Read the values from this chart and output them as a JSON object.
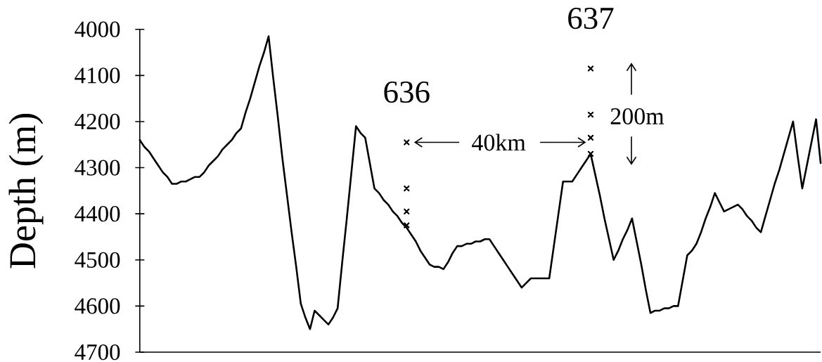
{
  "chart_data": {
    "type": "line",
    "ylabel": "Depth (m)",
    "ylim": [
      4700,
      4000
    ],
    "yticks": [
      4000,
      4100,
      4200,
      4300,
      4400,
      4500,
      4600,
      4700
    ],
    "categories": [
      null,
      null,
      null,
      null,
      null,
      null,
      null,
      null,
      null,
      null,
      null,
      null,
      null,
      null,
      null,
      null,
      null,
      null,
      null,
      null,
      null,
      null,
      null,
      null,
      null,
      null,
      null,
      null,
      null,
      null,
      null,
      null,
      null,
      null,
      null,
      null,
      null,
      null,
      null,
      null,
      null,
      null,
      null,
      null,
      null,
      null,
      null,
      null,
      null,
      null,
      null,
      null,
      null,
      null,
      null,
      null,
      null,
      null,
      "636",
      null,
      null,
      null,
      null,
      null,
      null,
      null,
      null,
      null,
      null,
      null,
      null,
      null,
      null,
      null,
      null,
      null,
      null,
      null,
      null,
      null,
      null,
      null,
      null,
      null,
      null,
      null,
      null,
      null,
      null,
      null,
      null,
      null,
      null,
      null,
      null,
      null,
      null,
      null,
      "637",
      null,
      null,
      null,
      null,
      null,
      null,
      null,
      null,
      null,
      null,
      null,
      null,
      null,
      null,
      null,
      null,
      null,
      null,
      null,
      null,
      null,
      null,
      null,
      null,
      null,
      null,
      null,
      null,
      null,
      null,
      null,
      null,
      null,
      null,
      null,
      null,
      null,
      null,
      null,
      null,
      null,
      null,
      null,
      null,
      null,
      null,
      null,
      null,
      null,
      null
    ],
    "series": [
      {
        "color": "#000000",
        "values": [
          4240,
          4255,
          4265,
          4280,
          4295,
          4310,
          4320,
          4335,
          4335,
          4330,
          4330,
          4325,
          4320,
          4320,
          4310,
          4295,
          4285,
          4275,
          4260,
          4250,
          4240,
          4225,
          4215,
          4180,
          4150,
          4115,
          4080,
          4050,
          4015,
          4105,
          4190,
          4280,
          4360,
          4440,
          4515,
          4595,
          4625,
          4650,
          4610,
          4620,
          4630,
          4640,
          4625,
          4605,
          4505,
          4410,
          4310,
          4210,
          4225,
          4235,
          4290,
          4345,
          4355,
          4370,
          4380,
          4395,
          4405,
          4420,
          4430,
          4445,
          4460,
          4480,
          4495,
          4510,
          4515,
          4515,
          4520,
          4505,
          4485,
          4470,
          4470,
          4465,
          4465,
          4460,
          4460,
          4455,
          4455,
          4470,
          4485,
          4500,
          4515,
          4530,
          4545,
          4560,
          4550,
          4540,
          4540,
          4540,
          4540,
          4540,
          4470,
          4400,
          4330,
          4330,
          4330,
          4315,
          4300,
          4285,
          4270,
          4315,
          4360,
          4410,
          4455,
          4500,
          4480,
          4455,
          4435,
          4410,
          4460,
          4510,
          4565,
          4615,
          4610,
          4610,
          4605,
          4605,
          4600,
          4600,
          4545,
          4490,
          4480,
          4465,
          4440,
          4410,
          4385,
          4355,
          4375,
          4395,
          4390,
          4385,
          4380,
          4390,
          4405,
          4415,
          4430,
          4440,
          4405,
          4370,
          4335,
          4305,
          4270,
          4235,
          4200,
          4275,
          4345,
          4295,
          4245,
          4195,
          4290
        ]
      },
      {
        "type": "scatter",
        "color": "#000000",
        "marker": "cross",
        "x": [
          "636",
          "636",
          "636",
          "636"
        ],
        "values": [
          4245,
          4345,
          4395,
          4425
        ]
      },
      {
        "type": "scatter",
        "color": "#000000",
        "marker": "cross",
        "x": [
          "637",
          "637",
          "637",
          "637"
        ],
        "values": [
          4085,
          4185,
          4235,
          4270
        ]
      }
    ],
    "annotations": [
      "40km",
      "200m"
    ]
  }
}
